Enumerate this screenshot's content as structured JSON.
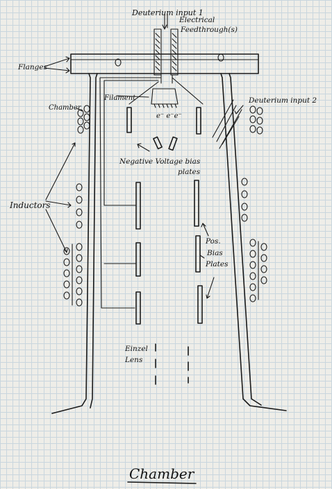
{
  "labels": {
    "deuterium_input_1": "Deuterium input 1",
    "electrical_feedthrough_line1": "Electrical",
    "electrical_feedthrough_line2": "Feedthrough(s)",
    "flanges": "Flanges",
    "filament": "Filament",
    "electrons": "e⁻ e⁻e⁻",
    "chamber_side": "Chamber",
    "deuterium_input_2": "Deuterium input 2",
    "negative_bias_line1": "Negative Voltage bias",
    "negative_bias_line2": "plates",
    "inductors": "Inductors",
    "pos_bias_line1": "Pos.",
    "pos_bias_line2": "Bias",
    "pos_bias_line3": "Plates",
    "einzel_line1": "Einzel",
    "einzel_line2": "Lens",
    "title": "Chamber"
  },
  "colors": {
    "ink": "#1a1a1a",
    "paper": "#eeede8",
    "grid": "#c9d6de"
  }
}
